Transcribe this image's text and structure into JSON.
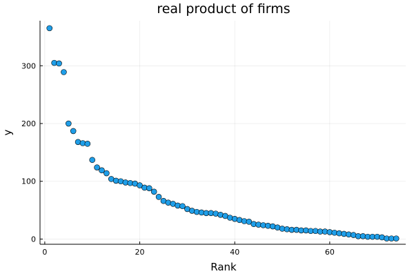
{
  "chart_data": {
    "type": "scatter",
    "title": "real product of firms",
    "xlabel": "Rank",
    "ylabel": "y",
    "xlim": [
      -1,
      76
    ],
    "ylim": [
      -9,
      378
    ],
    "xticks": [
      0,
      20,
      40,
      60
    ],
    "yticks": [
      0,
      100,
      200,
      300
    ],
    "grid": true,
    "legend": "none",
    "marker_color": "#1f9ee8",
    "series": [
      {
        "x": [
          1,
          2,
          3,
          4,
          5,
          6,
          7,
          8,
          9,
          10,
          11,
          12,
          13,
          14,
          15,
          16,
          17,
          18,
          19,
          20,
          21,
          22,
          23,
          24,
          25,
          26,
          27,
          28,
          29,
          30,
          31,
          32,
          33,
          34,
          35,
          36,
          37,
          38,
          39,
          40,
          41,
          42,
          43,
          44,
          45,
          46,
          47,
          48,
          49,
          50,
          51,
          52,
          53,
          54,
          55,
          56,
          57,
          58,
          59,
          60,
          61,
          62,
          63,
          64,
          65,
          66,
          67,
          68,
          69,
          70,
          71,
          72,
          73,
          74
        ],
        "y": [
          365,
          305,
          304,
          289,
          200,
          187,
          168,
          166,
          165,
          137,
          124,
          119,
          114,
          104,
          101,
          100,
          98,
          97,
          96,
          93,
          89,
          88,
          82,
          73,
          66,
          63,
          61,
          58,
          57,
          52,
          49,
          47,
          46,
          45,
          45,
          44,
          42,
          40,
          37,
          35,
          33,
          31,
          30,
          26,
          25,
          24,
          23,
          22,
          20,
          18,
          17,
          16,
          16,
          15,
          15,
          14,
          14,
          13,
          13,
          12,
          11,
          10,
          9,
          8,
          7,
          5,
          5,
          4,
          4,
          4,
          3,
          1,
          1,
          1
        ]
      }
    ]
  }
}
